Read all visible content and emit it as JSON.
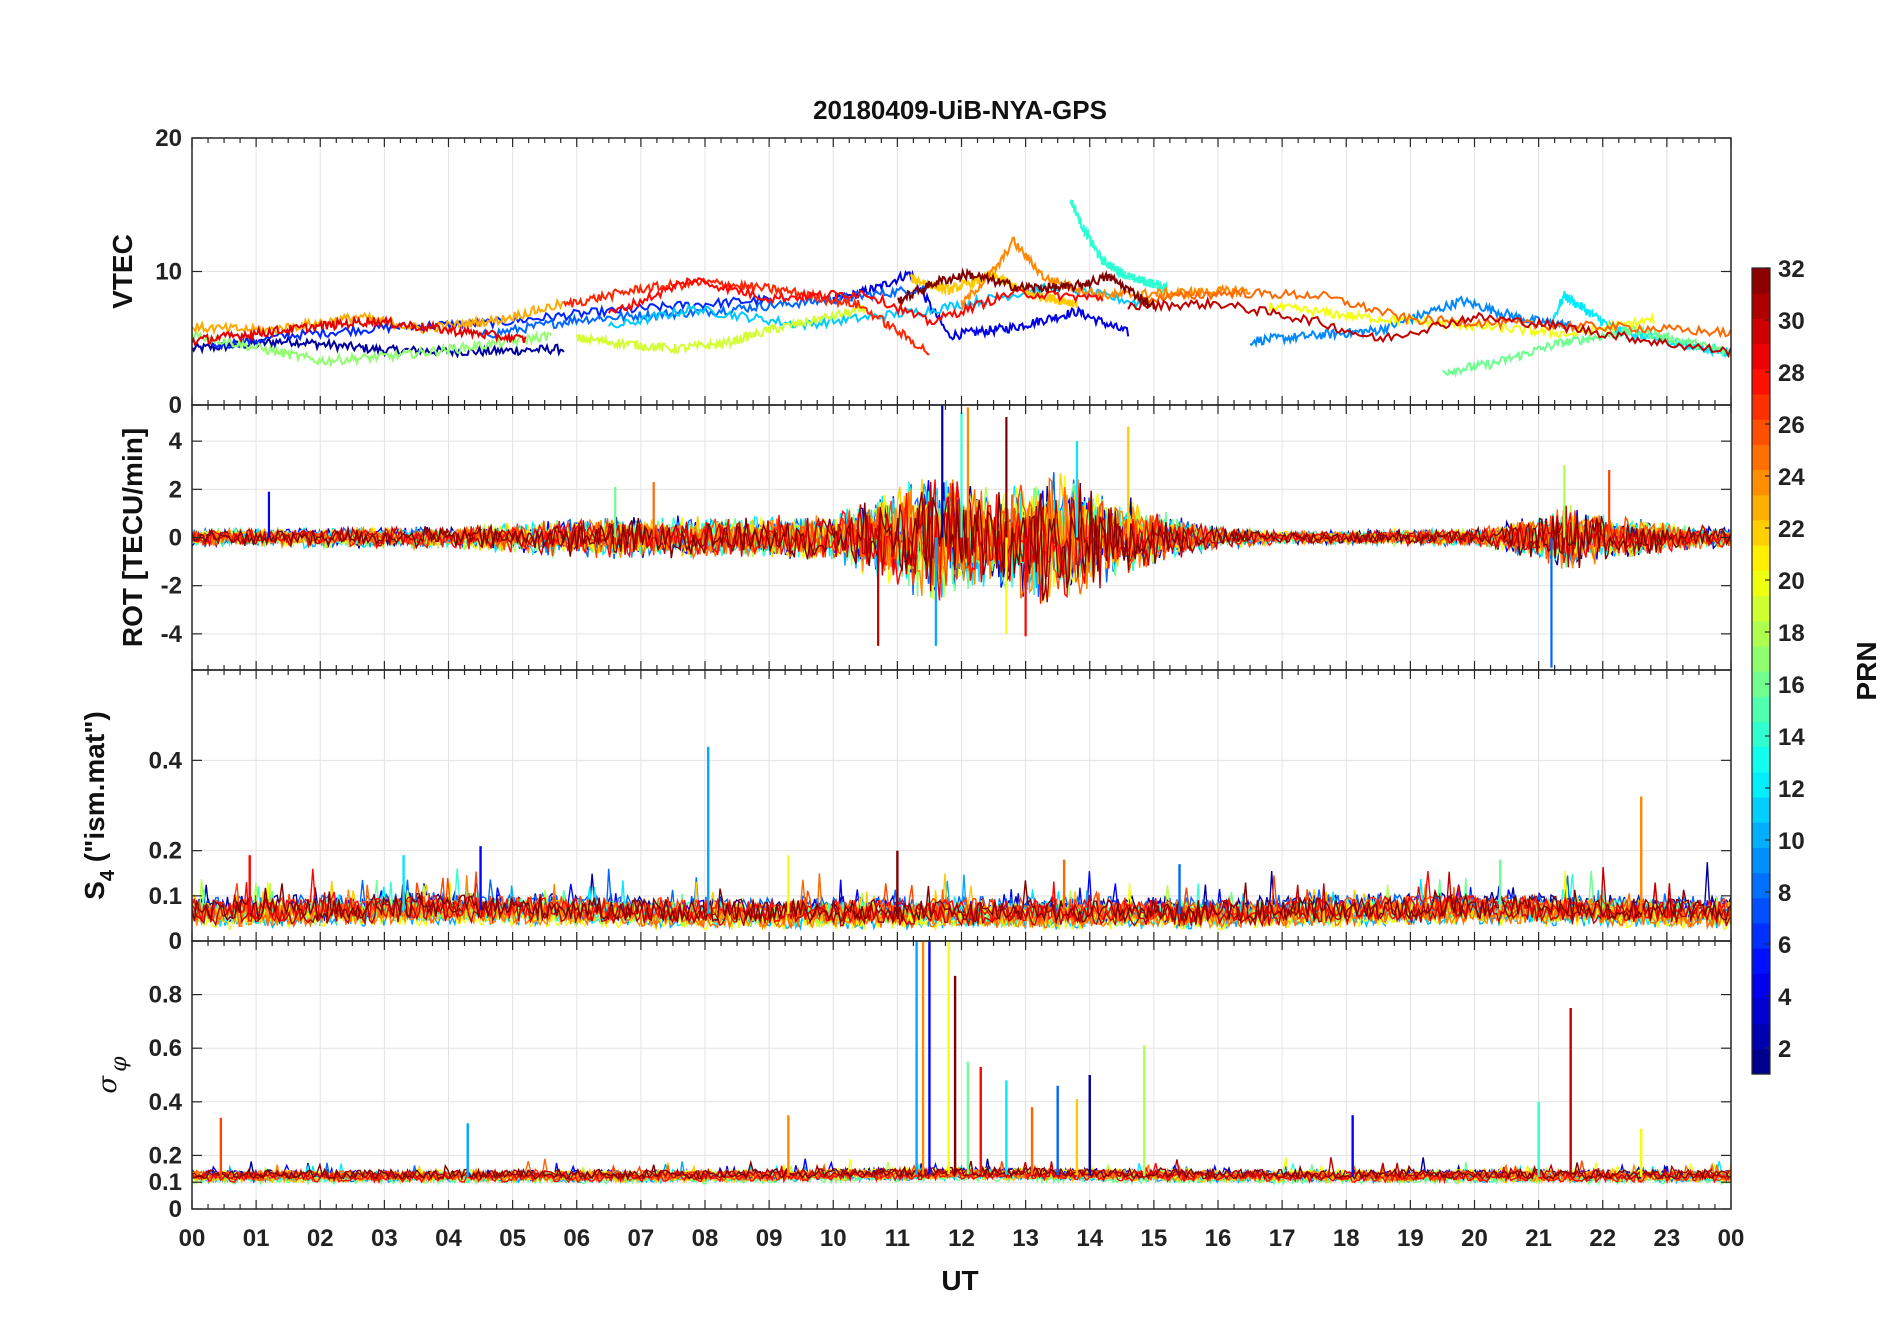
{
  "title": "20180409-UiB-NYA-GPS",
  "x_axis": {
    "label": "UT",
    "range": [
      0,
      24
    ],
    "tick_labels": [
      "00",
      "01",
      "02",
      "03",
      "04",
      "05",
      "06",
      "07",
      "08",
      "09",
      "10",
      "11",
      "12",
      "13",
      "14",
      "15",
      "16",
      "17",
      "18",
      "19",
      "20",
      "21",
      "22",
      "23",
      "00"
    ]
  },
  "colorbar": {
    "label": "PRN",
    "range": [
      1,
      32
    ],
    "colormap": "jet",
    "tick_labels": [
      "2",
      "4",
      "6",
      "8",
      "10",
      "12",
      "14",
      "16",
      "18",
      "20",
      "22",
      "24",
      "26",
      "28",
      "30",
      "32"
    ]
  },
  "chart_data": [
    {
      "type": "line",
      "panel": "VTEC",
      "ylabel": "VTEC",
      "ylim": [
        0,
        20
      ],
      "yticks": [
        "0",
        "10",
        "20"
      ],
      "grid": true,
      "series": [
        {
          "prn": 2,
          "x": [
            0,
            1.5,
            3,
            4.5,
            5.8
          ],
          "y": [
            4.2,
            4.8,
            4.1,
            4.0,
            4.2
          ]
        },
        {
          "prn": 4,
          "x": [
            10,
            10.7,
            11.2,
            11.8,
            12.8,
            13.8,
            14.6
          ],
          "y": [
            7.8,
            8.8,
            9.9,
            5.2,
            5.8,
            7.0,
            5.4
          ]
        },
        {
          "prn": 6,
          "x": [
            0.3,
            1.5,
            3.0,
            4.8,
            6.0,
            7.5,
            9.0
          ],
          "y": [
            4.4,
            5.2,
            5.8,
            6.2,
            6.8,
            7.4,
            7.9
          ]
        },
        {
          "prn": 8,
          "x": [
            4.5,
            6,
            8,
            10,
            11.5
          ],
          "y": [
            5.2,
            6.4,
            7.0,
            7.9,
            8.8
          ]
        },
        {
          "prn": 9,
          "x": [
            16.5,
            18.5,
            19.8,
            20.8,
            21.6
          ],
          "y": [
            4.8,
            5.6,
            7.8,
            6.4,
            5.9
          ]
        },
        {
          "prn": 11,
          "x": [
            6.5,
            7.8,
            9.5,
            11.5,
            13.5,
            14.8
          ],
          "y": [
            5.8,
            7.2,
            6.0,
            7.1,
            8.9,
            7.6
          ]
        },
        {
          "prn": 12,
          "x": [
            21.2,
            21.4,
            22.2,
            23.4,
            24
          ],
          "y": [
            6.2,
            8.2,
            5.6,
            4.4,
            3.9
          ]
        },
        {
          "prn": 14,
          "x": [
            13.7,
            13.9,
            14.2,
            14.6,
            15.2
          ],
          "y": [
            15.4,
            13.2,
            10.8,
            9.6,
            8.8
          ]
        },
        {
          "prn": 16,
          "x": [
            19.5,
            20.3,
            21.3,
            22.5,
            23.5,
            24
          ],
          "y": [
            2.5,
            3.1,
            4.6,
            5.6,
            4.5,
            3.9
          ]
        },
        {
          "prn": 17,
          "x": [
            0,
            1.0,
            2.0,
            3.2,
            4.6,
            5.6
          ],
          "y": [
            5.3,
            4.3,
            3.3,
            3.7,
            4.5,
            5.2
          ]
        },
        {
          "prn": 19,
          "x": [
            6.0,
            7.5,
            8.3,
            9.0,
            10.5
          ],
          "y": [
            5.0,
            4.2,
            4.6,
            5.6,
            7.2
          ]
        },
        {
          "prn": 20,
          "x": [
            16.8,
            18.2,
            19.8,
            21.5,
            22.8
          ],
          "y": [
            7.4,
            6.6,
            6.0,
            5.3,
            6.4
          ]
        },
        {
          "prn": 22,
          "x": [
            11.2,
            11.8,
            12.5,
            13.0,
            13.8
          ],
          "y": [
            9.5,
            8.6,
            9.7,
            8.4,
            7.6
          ]
        },
        {
          "prn": 23,
          "x": [
            0,
            1.2,
            2.6,
            3.6,
            4.8,
            5.8
          ],
          "y": [
            5.8,
            5.6,
            6.6,
            5.7,
            6.4,
            7.6
          ]
        },
        {
          "prn": 24,
          "x": [
            12.0,
            12.6,
            12.8,
            13.3,
            14.2,
            16.5
          ],
          "y": [
            7.5,
            10.6,
            12.3,
            9.5,
            8.2,
            8.6
          ]
        },
        {
          "prn": 25,
          "x": [
            14.8,
            16.2,
            17.6,
            19.0,
            21.0,
            22.5,
            24
          ],
          "y": [
            7.9,
            8.4,
            8.2,
            6.4,
            6.0,
            5.8,
            5.4
          ]
        },
        {
          "prn": 27,
          "x": [
            5.8,
            7.0,
            8.0,
            9.2,
            10.4,
            11.5
          ],
          "y": [
            7.5,
            8.7,
            9.2,
            8.6,
            7.5,
            3.9
          ]
        },
        {
          "prn": 28,
          "x": [
            6.5,
            7.8,
            9.0,
            10.5,
            11.5,
            12.8,
            14.2
          ],
          "y": [
            6.8,
            9.4,
            8.0,
            8.4,
            6.2,
            8.4,
            8.0
          ]
        },
        {
          "prn": 29,
          "x": [
            0,
            1.4,
            2.8,
            4.2,
            5.2
          ],
          "y": [
            4.8,
            5.6,
            6.3,
            5.5,
            4.9
          ]
        },
        {
          "prn": 30,
          "x": [
            14.6,
            16.0,
            17.5,
            18.5,
            20.0,
            21.2,
            23.0,
            24
          ],
          "y": [
            7.4,
            7.6,
            6.3,
            4.9,
            6.6,
            6.0,
            4.6,
            4.0
          ]
        },
        {
          "prn": 32,
          "x": [
            11.0,
            11.6,
            12.1,
            12.9,
            13.7,
            14.3,
            15.0
          ],
          "y": [
            7.8,
            9.2,
            9.8,
            8.8,
            8.8,
            9.6,
            7.4
          ]
        }
      ]
    },
    {
      "type": "line",
      "panel": "ROT",
      "ylabel": "ROT [TECU/min]",
      "ylim": [
        -5.5,
        5.5
      ],
      "yticks": [
        "-4",
        "-2",
        "0",
        "2",
        "4"
      ],
      "grid": true,
      "envelope": {
        "x": [
          0,
          4,
          6,
          10,
          10.5,
          11,
          11.5,
          12,
          12.5,
          13,
          13.5,
          14,
          14.5,
          15,
          15.5,
          16,
          17,
          20,
          21,
          21.5,
          22,
          23,
          24
        ],
        "amplitude": [
          0.4,
          0.5,
          0.9,
          1.0,
          1.8,
          2.2,
          3.0,
          2.6,
          2.2,
          2.6,
          3.2,
          2.4,
          1.8,
          1.4,
          0.8,
          0.5,
          0.3,
          0.4,
          1.0,
          1.6,
          1.0,
          0.7,
          0.4
        ]
      },
      "spikes": [
        {
          "x": 11.7,
          "y": 5.5
        },
        {
          "x": 12.0,
          "y": 5.2
        },
        {
          "x": 12.1,
          "y": 5.4
        },
        {
          "x": 12.7,
          "y": 5.0
        },
        {
          "x": 13.8,
          "y": 4.0
        },
        {
          "x": 14.6,
          "y": 4.6
        },
        {
          "x": 10.7,
          "y": -4.5
        },
        {
          "x": 11.6,
          "y": -4.5
        },
        {
          "x": 12.7,
          "y": -4.0
        },
        {
          "x": 13.0,
          "y": -4.1
        },
        {
          "x": 21.2,
          "y": -5.4
        },
        {
          "x": 21.4,
          "y": 3.0
        },
        {
          "x": 22.1,
          "y": 2.8
        },
        {
          "x": 1.2,
          "y": 1.9
        },
        {
          "x": 6.6,
          "y": 2.1
        },
        {
          "x": 7.2,
          "y": 2.3
        }
      ]
    },
    {
      "type": "line",
      "panel": "S4",
      "ylabel": "S4 (\"ism.mat\")",
      "ylim": [
        0,
        0.6
      ],
      "yticks": [
        "0",
        "0.1",
        "0.2",
        "0.4"
      ],
      "grid": true,
      "baseline": {
        "x": [
          0,
          4,
          8,
          12,
          16,
          20,
          24
        ],
        "y": [
          0.06,
          0.07,
          0.06,
          0.06,
          0.06,
          0.07,
          0.06
        ]
      },
      "spikes": [
        {
          "x": 8.05,
          "y": 0.43
        },
        {
          "x": 22.6,
          "y": 0.32
        },
        {
          "x": 4.5,
          "y": 0.21
        },
        {
          "x": 9.3,
          "y": 0.19
        },
        {
          "x": 11.0,
          "y": 0.2
        },
        {
          "x": 20.4,
          "y": 0.18
        },
        {
          "x": 0.9,
          "y": 0.19
        },
        {
          "x": 3.3,
          "y": 0.19
        },
        {
          "x": 13.6,
          "y": 0.18
        },
        {
          "x": 15.4,
          "y": 0.17
        }
      ]
    },
    {
      "type": "line",
      "panel": "sigma_phi",
      "ylabel": "σ φ",
      "ylim": [
        0,
        1.0
      ],
      "yticks": [
        "0",
        "0.1",
        "0.2",
        "0.4",
        "0.6",
        "0.8"
      ],
      "grid": true,
      "baseline": {
        "x": [
          0,
          4,
          8,
          12,
          16,
          20,
          24
        ],
        "y": [
          0.12,
          0.12,
          0.12,
          0.13,
          0.12,
          0.12,
          0.12
        ]
      },
      "spikes": [
        {
          "x": 11.3,
          "y": 1.0
        },
        {
          "x": 11.4,
          "y": 1.0
        },
        {
          "x": 11.5,
          "y": 1.0
        },
        {
          "x": 11.8,
          "y": 1.0
        },
        {
          "x": 11.9,
          "y": 0.87
        },
        {
          "x": 12.1,
          "y": 0.55
        },
        {
          "x": 12.3,
          "y": 0.53
        },
        {
          "x": 12.7,
          "y": 0.48
        },
        {
          "x": 13.1,
          "y": 0.38
        },
        {
          "x": 13.5,
          "y": 0.46
        },
        {
          "x": 13.8,
          "y": 0.41
        },
        {
          "x": 14.0,
          "y": 0.5
        },
        {
          "x": 14.85,
          "y": 0.61
        },
        {
          "x": 21.5,
          "y": 0.75
        },
        {
          "x": 21.0,
          "y": 0.4
        },
        {
          "x": 0.45,
          "y": 0.34
        },
        {
          "x": 4.3,
          "y": 0.32
        },
        {
          "x": 9.3,
          "y": 0.35
        },
        {
          "x": 18.1,
          "y": 0.35
        },
        {
          "x": 22.6,
          "y": 0.3
        }
      ]
    }
  ]
}
